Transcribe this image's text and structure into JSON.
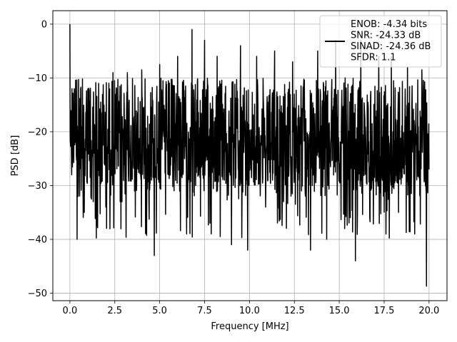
{
  "chart_data": {
    "type": "line",
    "xlabel": "Frequency [MHz]",
    "ylabel": "PSD [dB]",
    "xlim": [
      -0.95,
      21.0
    ],
    "ylim": [
      -51.4,
      2.5
    ],
    "xticks": [
      0.0,
      2.5,
      5.0,
      7.5,
      10.0,
      12.5,
      15.0,
      17.5,
      20.0
    ],
    "xtick_labels": [
      "0.0",
      "2.5",
      "5.0",
      "7.5",
      "10.0",
      "12.5",
      "15.0",
      "17.5",
      "20.0"
    ],
    "yticks": [
      0,
      -10,
      -20,
      -30,
      -40,
      -50
    ],
    "ytick_labels": [
      "0",
      "−10",
      "−20",
      "−30",
      "−40",
      "−50"
    ],
    "grid": true,
    "legend": {
      "placement": "top-right",
      "entries": [
        "ENOB: -4.34 bits",
        "SNR: -24.33 dB",
        "SINAD: -24.36 dB",
        "SFDR: 1.1"
      ]
    },
    "series": [
      {
        "color": "#000000",
        "x_range": [
          0,
          20
        ],
        "peak": {
          "x": 0.0,
          "y": 0.0
        },
        "noise_band": {
          "upper": -8,
          "typical_low": -30,
          "min": -48.7
        },
        "x": [
          0.0,
          0.1,
          0.25,
          0.4,
          0.6,
          0.8,
          1.0,
          1.3,
          1.6,
          2.0,
          2.4,
          2.8,
          3.2,
          3.6,
          4.0,
          4.4,
          4.7,
          5.0,
          5.5,
          6.0,
          6.5,
          6.8,
          7.0,
          7.5,
          7.8,
          8.2,
          8.6,
          9.0,
          9.5,
          9.9,
          10.4,
          10.9,
          11.4,
          11.9,
          12.4,
          12.9,
          13.4,
          13.8,
          14.3,
          14.8,
          15.3,
          15.9,
          16.2,
          16.7,
          17.2,
          17.6,
          17.9,
          18.3,
          18.8,
          19.2,
          19.6,
          19.85,
          20.0
        ],
        "y": [
          0.0,
          -28.0,
          -14.0,
          -40.0,
          -12.0,
          -35.0,
          -12.0,
          -33.0,
          -11.0,
          -34.0,
          -9.0,
          -33.0,
          -9.0,
          -31.0,
          -8.5,
          -33.0,
          -43.0,
          -7.5,
          -28.0,
          -6.0,
          -39.0,
          -1.0,
          -30.0,
          -3.0,
          -37.0,
          -6.0,
          -29.0,
          -41.0,
          -4.0,
          -42.0,
          -6.0,
          -34.0,
          -5.0,
          -33.0,
          -7.0,
          -31.0,
          -42.0,
          -5.0,
          -40.0,
          -3.0,
          -38.0,
          -44.0,
          -3.0,
          -36.0,
          -6.0,
          -39.0,
          -6.0,
          -35.0,
          -8.0,
          -39.0,
          -8.5,
          -48.7,
          -27.0
        ]
      }
    ]
  }
}
